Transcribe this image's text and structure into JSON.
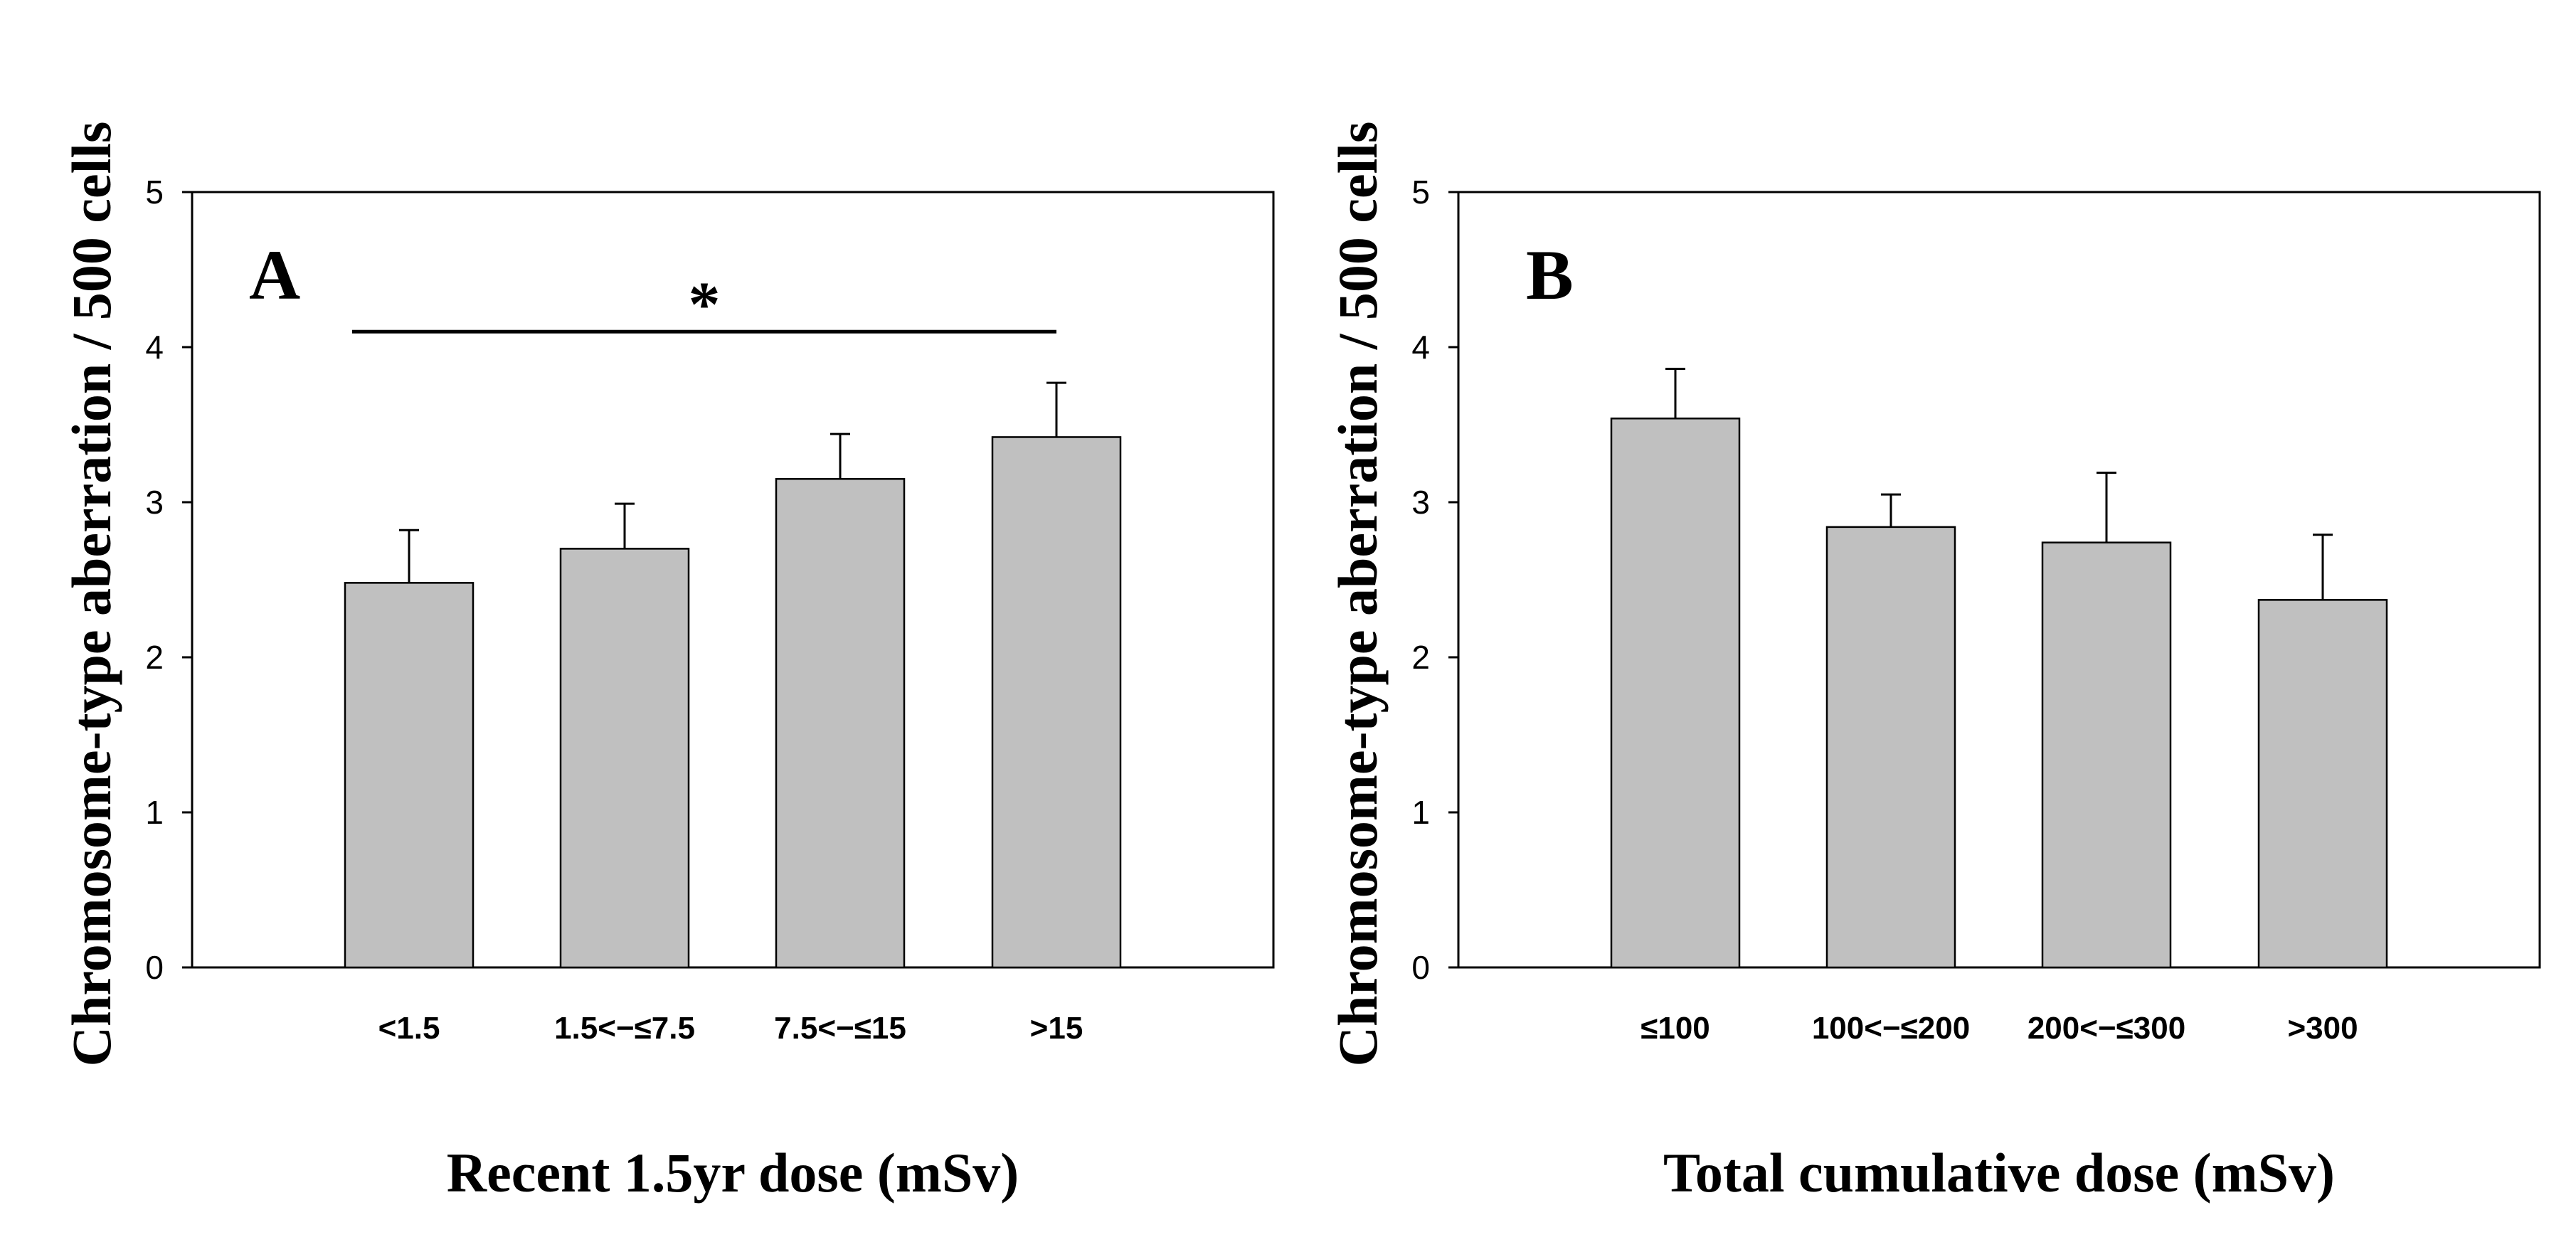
{
  "chart_data": [
    {
      "type": "bar",
      "panel": "A",
      "categories": [
        "<1.5",
        "1.5<−≤7.5",
        "7.5<−≤15",
        ">15"
      ],
      "values": [
        2.48,
        2.7,
        3.15,
        3.42
      ],
      "errors": [
        0.34,
        0.29,
        0.29,
        0.35
      ],
      "title": "",
      "xlabel": "Recent 1.5yr dose (mSv)",
      "ylabel": "Chromosome-type aberration / 500 cells",
      "ylim": [
        0,
        5
      ],
      "yticks": [
        "0",
        "1",
        "2",
        "3",
        "4",
        "5"
      ],
      "significance": {
        "from_category": 0,
        "to_category": 3,
        "y": 4.1,
        "label": "*"
      }
    },
    {
      "type": "bar",
      "panel": "B",
      "categories": [
        "≤100",
        "100<−≤200",
        "200<−≤300",
        ">300"
      ],
      "values": [
        3.54,
        2.84,
        2.74,
        2.37
      ],
      "errors": [
        0.32,
        0.21,
        0.45,
        0.42
      ],
      "title": "",
      "xlabel": "Total cumulative dose (mSv)",
      "ylabel": "Chromosome-type aberration / 500 cells",
      "ylim": [
        0,
        5
      ],
      "yticks": [
        "0",
        "1",
        "2",
        "3",
        "4",
        "5"
      ]
    }
  ]
}
